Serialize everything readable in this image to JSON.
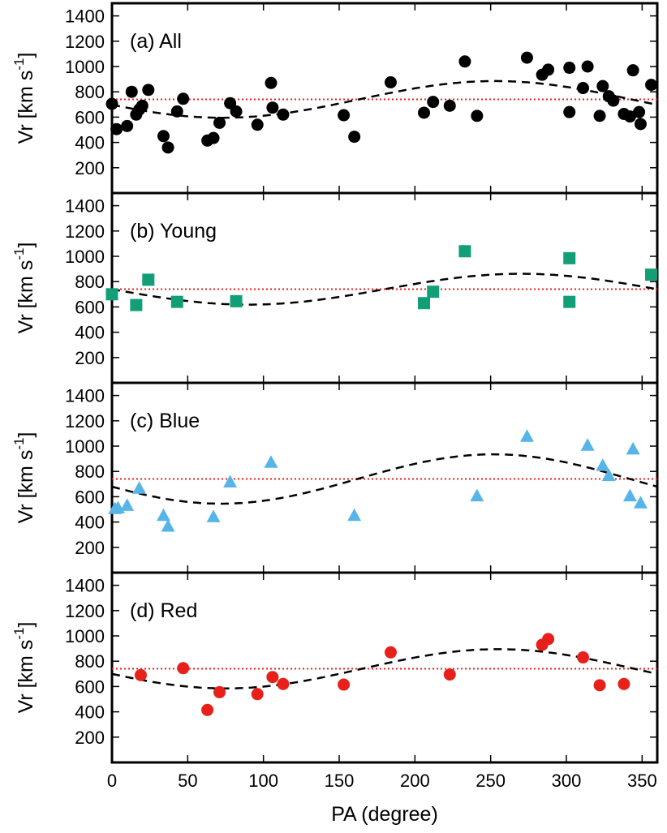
{
  "chart_data": {
    "type": "scatter",
    "xlabel": "PA (degree)",
    "xlim": [
      0,
      360
    ],
    "xticks": [
      0,
      50,
      100,
      150,
      200,
      250,
      300,
      350
    ],
    "ylim": [
      0,
      1500
    ],
    "yticks": [
      200,
      400,
      600,
      800,
      1000,
      1200,
      1400
    ],
    "ylabel_main": "Vr [km s",
    "ylabel_exp": "-1",
    "ylabel_close": "]",
    "reference_line_value": 740,
    "reference_line_color": "#e8201a",
    "model_line_color": "#000000",
    "panels": [
      {
        "label": "(a) All",
        "marker": "circle",
        "color": "#000000",
        "model": {
          "mean": 740,
          "amplitude": 145,
          "peak_pa": 253
        },
        "points": [
          {
            "x": 0,
            "y": 705
          },
          {
            "x": 3,
            "y": 505
          },
          {
            "x": 10,
            "y": 530
          },
          {
            "x": 13,
            "y": 800,
            "err": 35
          },
          {
            "x": 16,
            "y": 620
          },
          {
            "x": 18,
            "y": 660
          },
          {
            "x": 20,
            "y": 690
          },
          {
            "x": 24,
            "y": 815
          },
          {
            "x": 34,
            "y": 450
          },
          {
            "x": 37,
            "y": 360
          },
          {
            "x": 43,
            "y": 645
          },
          {
            "x": 47,
            "y": 745
          },
          {
            "x": 63,
            "y": 415
          },
          {
            "x": 67,
            "y": 435
          },
          {
            "x": 71,
            "y": 555
          },
          {
            "x": 78,
            "y": 710
          },
          {
            "x": 82,
            "y": 645
          },
          {
            "x": 96,
            "y": 540
          },
          {
            "x": 105,
            "y": 870
          },
          {
            "x": 106,
            "y": 675
          },
          {
            "x": 113,
            "y": 620
          },
          {
            "x": 153,
            "y": 615
          },
          {
            "x": 160,
            "y": 445
          },
          {
            "x": 184,
            "y": 875
          },
          {
            "x": 206,
            "y": 635
          },
          {
            "x": 212,
            "y": 720
          },
          {
            "x": 223,
            "y": 690
          },
          {
            "x": 233,
            "y": 1040
          },
          {
            "x": 241,
            "y": 610
          },
          {
            "x": 274,
            "y": 1070
          },
          {
            "x": 284,
            "y": 935
          },
          {
            "x": 288,
            "y": 975
          },
          {
            "x": 302,
            "y": 990,
            "err": 35
          },
          {
            "x": 302,
            "y": 640
          },
          {
            "x": 311,
            "y": 830
          },
          {
            "x": 314,
            "y": 1000
          },
          {
            "x": 322,
            "y": 610
          },
          {
            "x": 324,
            "y": 845
          },
          {
            "x": 328,
            "y": 765
          },
          {
            "x": 331,
            "y": 730
          },
          {
            "x": 338,
            "y": 625
          },
          {
            "x": 342,
            "y": 605
          },
          {
            "x": 344,
            "y": 970
          },
          {
            "x": 348,
            "y": 640
          },
          {
            "x": 349,
            "y": 545
          },
          {
            "x": 356,
            "y": 855
          }
        ]
      },
      {
        "label": "(b) Young",
        "marker": "square",
        "color": "#129e77",
        "model": {
          "mean": 740,
          "amplitude": 122,
          "peak_pa": 270
        },
        "points": [
          {
            "x": 0,
            "y": 700
          },
          {
            "x": 16,
            "y": 615
          },
          {
            "x": 24,
            "y": 815
          },
          {
            "x": 43,
            "y": 640
          },
          {
            "x": 82,
            "y": 645
          },
          {
            "x": 206,
            "y": 630
          },
          {
            "x": 212,
            "y": 720
          },
          {
            "x": 233,
            "y": 1040
          },
          {
            "x": 302,
            "y": 985
          },
          {
            "x": 302,
            "y": 640
          },
          {
            "x": 356,
            "y": 855
          }
        ]
      },
      {
        "label": "(c) Blue",
        "marker": "triangle",
        "color": "#56b4e9",
        "model": {
          "mean": 740,
          "amplitude": 195,
          "peak_pa": 252
        },
        "points": [
          {
            "x": 2,
            "y": 505
          },
          {
            "x": 4,
            "y": 510
          },
          {
            "x": 10,
            "y": 530
          },
          {
            "x": 18,
            "y": 665
          },
          {
            "x": 34,
            "y": 450
          },
          {
            "x": 37,
            "y": 365
          },
          {
            "x": 67,
            "y": 440
          },
          {
            "x": 78,
            "y": 715
          },
          {
            "x": 105,
            "y": 870
          },
          {
            "x": 160,
            "y": 450
          },
          {
            "x": 241,
            "y": 605
          },
          {
            "x": 274,
            "y": 1075
          },
          {
            "x": 314,
            "y": 1005
          },
          {
            "x": 324,
            "y": 845
          },
          {
            "x": 328,
            "y": 765
          },
          {
            "x": 342,
            "y": 605
          },
          {
            "x": 344,
            "y": 975
          },
          {
            "x": 349,
            "y": 550
          }
        ]
      },
      {
        "label": "(d) Red",
        "marker": "circle",
        "color": "#e8201a",
        "model": {
          "mean": 740,
          "amplitude": 155,
          "peak_pa": 255
        },
        "points": [
          {
            "x": 19,
            "y": 690
          },
          {
            "x": 47,
            "y": 745
          },
          {
            "x": 63,
            "y": 415
          },
          {
            "x": 71,
            "y": 555
          },
          {
            "x": 96,
            "y": 540
          },
          {
            "x": 106,
            "y": 675
          },
          {
            "x": 113,
            "y": 620
          },
          {
            "x": 153,
            "y": 615
          },
          {
            "x": 184,
            "y": 870
          },
          {
            "x": 223,
            "y": 695
          },
          {
            "x": 284,
            "y": 930
          },
          {
            "x": 288,
            "y": 975
          },
          {
            "x": 311,
            "y": 830
          },
          {
            "x": 322,
            "y": 610
          },
          {
            "x": 338,
            "y": 620
          }
        ]
      }
    ]
  }
}
